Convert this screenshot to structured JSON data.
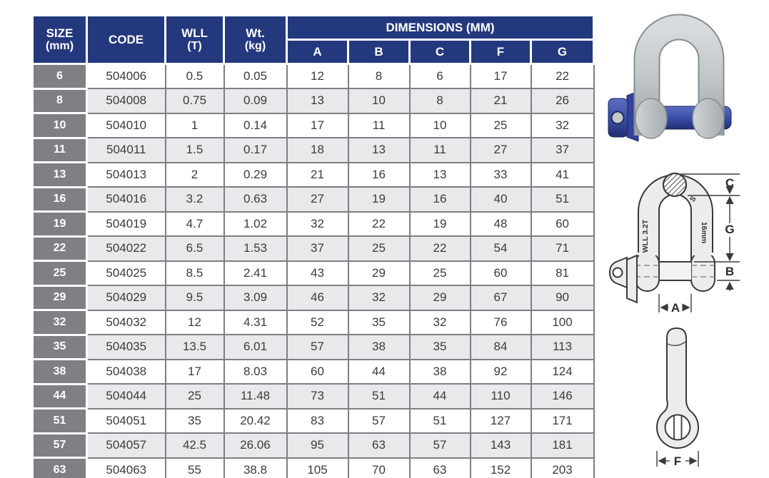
{
  "page": {
    "background": "#ffffff"
  },
  "colors": {
    "header_navy": "#24397d",
    "size_column_gray": "#7f8084",
    "row_alt_gray": "#e9e9ec",
    "grid_border_gray": "#7e7e83",
    "text_dark": "#3b3b3d",
    "drawing_fill": "#ececec",
    "drawing_line": "#3a3a3c",
    "pin_blue": "#3547a0"
  },
  "table": {
    "columns": [
      {
        "line1": "SIZE",
        "line2": "(mm)"
      },
      {
        "line1": "CODE",
        "line2": ""
      },
      {
        "line1": "WLL",
        "line2": "(T)"
      },
      {
        "line1": "Wt.",
        "line2": "(kg)"
      }
    ],
    "dims_header": "DIMENSIONS (MM)",
    "dim_columns": [
      "A",
      "B",
      "C",
      "F",
      "G"
    ],
    "rows": [
      [
        "6",
        "504006",
        "0.5",
        "0.05",
        "12",
        "8",
        "6",
        "17",
        "22"
      ],
      [
        "8",
        "504008",
        "0.75",
        "0.09",
        "13",
        "10",
        "8",
        "21",
        "26"
      ],
      [
        "10",
        "504010",
        "1",
        "0.14",
        "17",
        "11",
        "10",
        "25",
        "32"
      ],
      [
        "11",
        "504011",
        "1.5",
        "0.17",
        "18",
        "13",
        "11",
        "27",
        "37"
      ],
      [
        "13",
        "504013",
        "2",
        "0.29",
        "21",
        "16",
        "13",
        "33",
        "41"
      ],
      [
        "16",
        "504016",
        "3.2",
        "0.63",
        "27",
        "19",
        "16",
        "40",
        "51"
      ],
      [
        "19",
        "504019",
        "4.7",
        "1.02",
        "32",
        "22",
        "19",
        "48",
        "60"
      ],
      [
        "22",
        "504022",
        "6.5",
        "1.53",
        "37",
        "25",
        "22",
        "54",
        "71"
      ],
      [
        "25",
        "504025",
        "8.5",
        "2.41",
        "43",
        "29",
        "25",
        "60",
        "81"
      ],
      [
        "29",
        "504029",
        "9.5",
        "3.09",
        "46",
        "32",
        "29",
        "67",
        "90"
      ],
      [
        "32",
        "504032",
        "12",
        "4.31",
        "52",
        "35",
        "32",
        "76",
        "100"
      ],
      [
        "35",
        "504035",
        "13.5",
        "6.01",
        "57",
        "38",
        "35",
        "84",
        "113"
      ],
      [
        "38",
        "504038",
        "17",
        "8.03",
        "60",
        "44",
        "38",
        "92",
        "124"
      ],
      [
        "44",
        "504044",
        "25",
        "11.48",
        "73",
        "51",
        "44",
        "110",
        "146"
      ],
      [
        "51",
        "504051",
        "35",
        "20.42",
        "83",
        "57",
        "51",
        "127",
        "171"
      ],
      [
        "57",
        "504057",
        "42.5",
        "26.06",
        "95",
        "63",
        "57",
        "143",
        "181"
      ],
      [
        "63",
        "504063",
        "55",
        "38.8",
        "105",
        "70",
        "63",
        "152",
        "203"
      ]
    ]
  },
  "illustrations": {
    "front_diagram": {
      "wll_marking": "WLL 3.2T",
      "size_marking": "16mm",
      "s_marking": "S",
      "dim_a": "A",
      "dim_b": "B",
      "dim_c": "C",
      "dim_g": "G"
    },
    "side_diagram": {
      "dim_f": "F"
    }
  }
}
